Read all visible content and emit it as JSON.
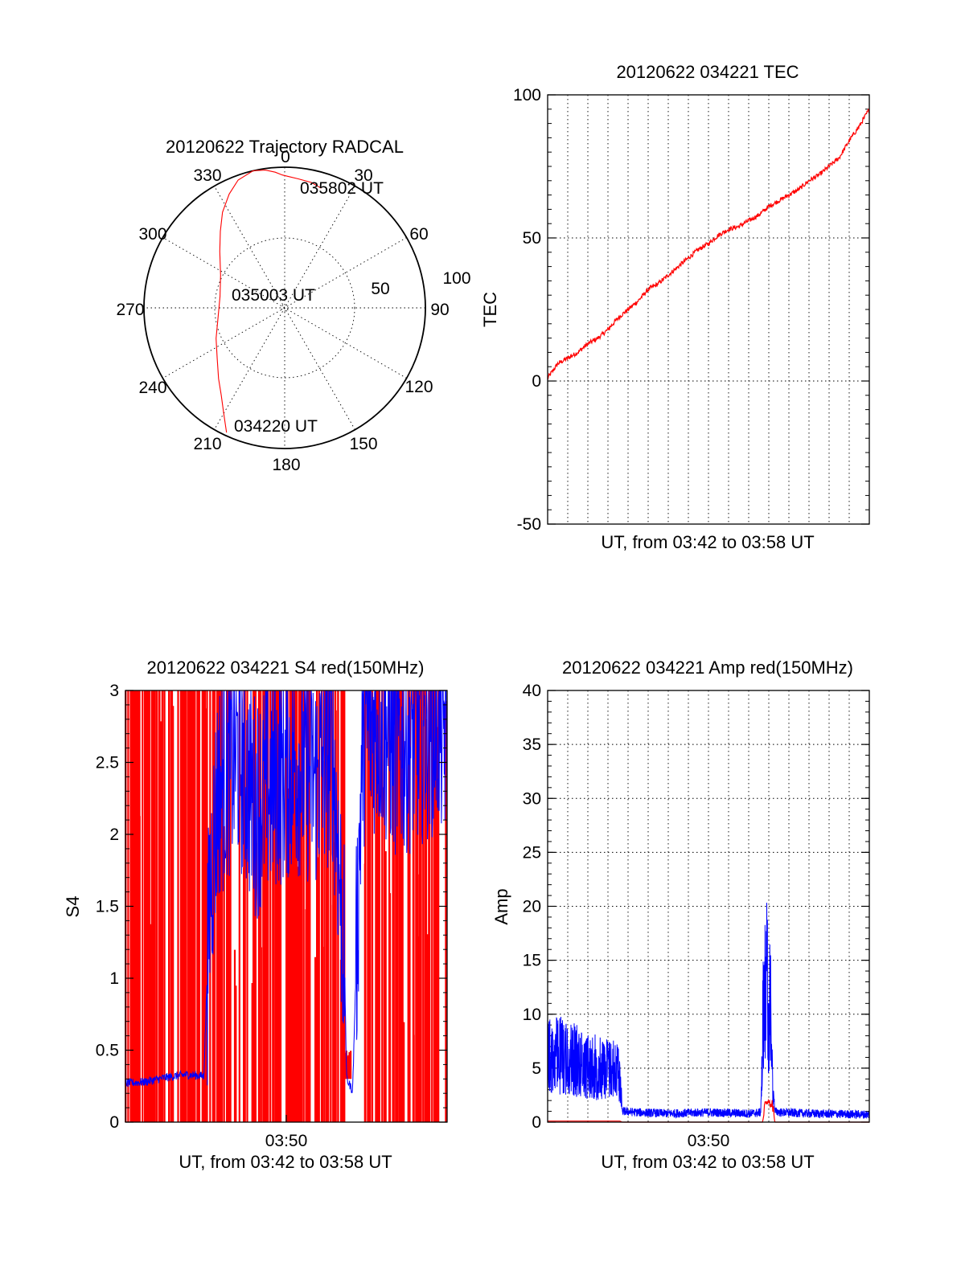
{
  "colors": {
    "red": "#ff0000",
    "blue": "#0000ff",
    "axis": "#000000"
  },
  "chart_data": [
    {
      "id": "trajectory",
      "type": "polar",
      "title": "20120622 Trajectory RADCAL",
      "angle_labels": [
        "0",
        "30",
        "60",
        "90",
        "120",
        "150",
        "180",
        "210",
        "240",
        "270",
        "300",
        "330"
      ],
      "radial_labels": [
        "50",
        "100"
      ],
      "rlim": [
        0,
        90
      ],
      "grid": true,
      "series": [
        {
          "color": "#ff0000",
          "points": [
            {
              "az": 205,
              "zen": 88
            },
            {
              "az": 210,
              "zen": 78
            },
            {
              "az": 216,
              "zen": 69
            },
            {
              "az": 223,
              "zen": 62
            },
            {
              "az": 233,
              "zen": 54
            },
            {
              "az": 246,
              "zen": 48
            },
            {
              "az": 262,
              "zen": 43
            },
            {
              "az": 280,
              "zen": 42
            },
            {
              "az": 297,
              "zen": 46
            },
            {
              "az": 311,
              "zen": 55
            },
            {
              "az": 320,
              "zen": 64
            },
            {
              "az": 327,
              "zen": 73
            },
            {
              "az": 334,
              "zen": 81
            },
            {
              "az": 340,
              "zen": 87
            },
            {
              "az": 347,
              "zen": 90
            },
            {
              "az": 352,
              "zen": 89
            },
            {
              "az": 356,
              "zen": 87
            },
            {
              "az": 359,
              "zen": 85
            },
            {
              "az": 2,
              "zen": 84
            },
            {
              "az": 6,
              "zen": 83
            },
            {
              "az": 12,
              "zen": 82
            },
            {
              "az": 17,
              "zen": 80
            }
          ]
        }
      ],
      "annotations": [
        "035802 UT",
        "035003 UT",
        "034220 UT"
      ]
    },
    {
      "id": "tec",
      "type": "line",
      "title": "20120622 034221 TEC",
      "xlabel": "UT, from 03:42 to 03:58 UT",
      "ylabel": "TEC",
      "xlim": [
        0,
        16
      ],
      "ylim": [
        -50,
        100
      ],
      "yticks": [
        "-50",
        "0",
        "50",
        "100"
      ],
      "grid": true,
      "series": [
        {
          "color": "#ff0000",
          "x": [
            0,
            0.5,
            1,
            1.5,
            2,
            2.5,
            3,
            3.5,
            4,
            4.5,
            5,
            5.5,
            6,
            6.5,
            7,
            7.5,
            8,
            8.5,
            9,
            9.5,
            10,
            10.5,
            11,
            11.5,
            12,
            12.5,
            13,
            13.5,
            14,
            14.5,
            15,
            15.5,
            16
          ],
          "y": [
            1,
            6,
            8,
            10,
            13,
            15,
            18,
            22,
            25,
            28,
            32,
            34,
            37,
            40,
            43,
            46,
            48,
            51,
            53,
            54,
            56,
            58,
            61,
            63,
            65,
            67,
            70,
            72,
            75,
            78,
            84,
            89,
            95
          ]
        }
      ]
    },
    {
      "id": "s4",
      "type": "line",
      "title": "20120622 034221 S4 red(150MHz)",
      "xlabel": "UT, from 03:42 to 03:58 UT",
      "ylabel": "S4",
      "xtick_label": "03:50",
      "xlim": [
        0,
        16
      ],
      "ylim": [
        0,
        3
      ],
      "yticks": [
        "0",
        "0.5",
        "1",
        "1.5",
        "2",
        "2.5",
        "3"
      ],
      "grid": false,
      "series": [
        {
          "name": "",
          "color": "#ff0000",
          "description_values": {
            "spikes_min": 0,
            "spikes_max": 3,
            "gap_x": [
              10.9,
              11.8
            ],
            "cluster_at_x": 11.1,
            "cluster_y": [
              0.3,
              0.5
            ]
          }
        },
        {
          "name": "",
          "color": "#0000ff",
          "x": [
            0,
            1,
            2,
            3,
            3.9,
            4.2,
            4.6,
            5.5,
            6.5,
            7.5,
            8.5,
            9.5,
            10.3,
            10.9,
            11.0,
            11.3,
            11.8,
            12.5,
            13.5,
            14.5,
            15.5,
            16
          ],
          "y": [
            0.27,
            0.28,
            0.31,
            0.33,
            0.32,
            1.6,
            2.3,
            2.6,
            2.2,
            2.4,
            2.5,
            2.4,
            2.6,
            1.1,
            0.3,
            0.22,
            2.7,
            2.8,
            2.6,
            2.7,
            2.8,
            2.7
          ]
        }
      ]
    },
    {
      "id": "amp",
      "type": "line",
      "title": "20120622 034221 Amp red(150MHz)",
      "xlabel": "UT, from 03:42 to 03:58 UT",
      "ylabel": "Amp",
      "xtick_label": "03:50",
      "xlim": [
        0,
        16
      ],
      "ylim": [
        0,
        40
      ],
      "yticks": [
        "0",
        "5",
        "10",
        "15",
        "20",
        "25",
        "30",
        "35",
        "40"
      ],
      "grid": true,
      "series": [
        {
          "name": "",
          "color": "#0000ff",
          "x": [
            0,
            0.5,
            1,
            1.5,
            2,
            2.5,
            3,
            3.5,
            3.6,
            3.7,
            4.5,
            6,
            8,
            10,
            10.6,
            10.7,
            10.8,
            10.9,
            11.0,
            11.1,
            11.2,
            11.3,
            11.6,
            13,
            16
          ],
          "y": [
            9.5,
            10,
            9.5,
            9,
            8.5,
            8,
            8,
            7.5,
            7,
            1,
            0.9,
            0.8,
            0.9,
            0.8,
            0.9,
            14,
            20,
            21,
            17,
            16,
            4,
            1,
            0.9,
            0.8,
            0.7
          ]
        },
        {
          "name": "",
          "color": "#ff0000",
          "x": [
            0,
            3.6,
            3.7,
            10.7,
            10.8,
            11.0,
            11.2,
            11.3
          ],
          "y": [
            0.1,
            0.1,
            0,
            0,
            1.5,
            2.2,
            1.5,
            0
          ]
        }
      ]
    }
  ]
}
